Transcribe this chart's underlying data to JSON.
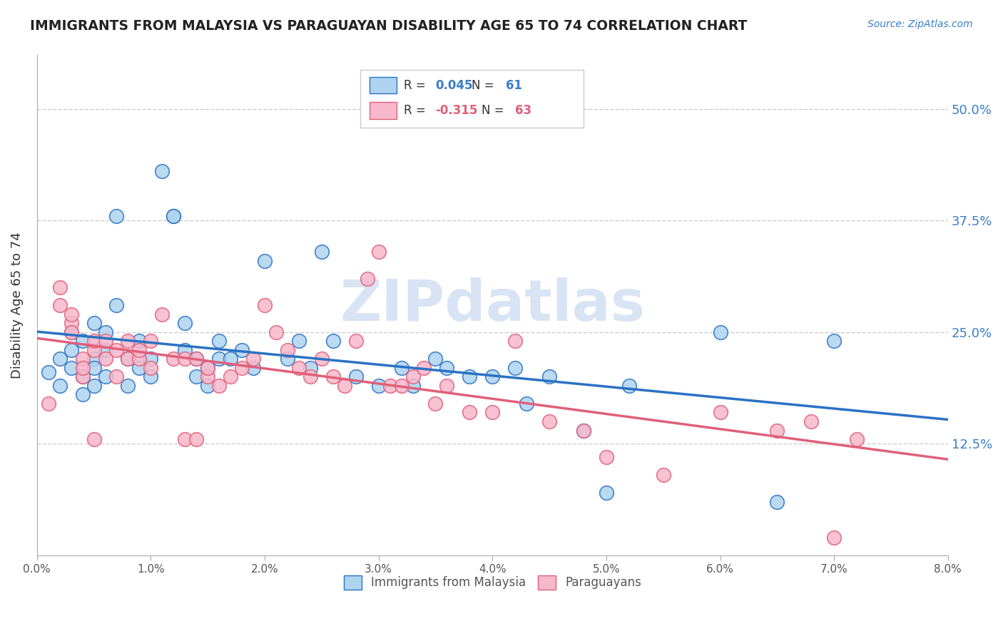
{
  "title": "IMMIGRANTS FROM MALAYSIA VS PARAGUAYAN DISABILITY AGE 65 TO 74 CORRELATION CHART",
  "source": "Source: ZipAtlas.com",
  "ylabel": "Disability Age 65 to 74",
  "ytick_labels": [
    "50.0%",
    "37.5%",
    "25.0%",
    "12.5%"
  ],
  "ytick_values": [
    0.5,
    0.375,
    0.25,
    0.125
  ],
  "xmin": 0.0,
  "xmax": 0.08,
  "ymin": 0.0,
  "ymax": 0.56,
  "legend_label_1": "Immigrants from Malaysia",
  "legend_label_2": "Paraguayans",
  "r1": "0.045",
  "n1": "61",
  "r2": "-0.315",
  "n2": "63",
  "color_blue": "#aed4f0",
  "color_pink": "#f7b8cb",
  "color_blue_line": "#2a72c3",
  "color_pink_line": "#e0607a",
  "color_blue_text": "#3a7dc9",
  "color_pink_text": "#e0607a",
  "watermark_color": "#d8e4f4",
  "background_color": "#ffffff",
  "grid_color": "#cccccc",
  "malaysia_x": [
    0.001,
    0.002,
    0.002,
    0.003,
    0.003,
    0.003,
    0.004,
    0.004,
    0.004,
    0.005,
    0.005,
    0.005,
    0.005,
    0.006,
    0.006,
    0.006,
    0.007,
    0.007,
    0.008,
    0.008,
    0.009,
    0.009,
    0.01,
    0.01,
    0.011,
    0.012,
    0.012,
    0.013,
    0.013,
    0.014,
    0.014,
    0.015,
    0.015,
    0.016,
    0.016,
    0.017,
    0.018,
    0.019,
    0.02,
    0.022,
    0.023,
    0.024,
    0.025,
    0.026,
    0.028,
    0.03,
    0.032,
    0.033,
    0.035,
    0.036,
    0.038,
    0.04,
    0.042,
    0.043,
    0.045,
    0.048,
    0.05,
    0.052,
    0.06,
    0.065,
    0.07
  ],
  "malaysia_y": [
    0.205,
    0.22,
    0.19,
    0.25,
    0.21,
    0.23,
    0.18,
    0.24,
    0.2,
    0.22,
    0.26,
    0.19,
    0.21,
    0.23,
    0.2,
    0.25,
    0.28,
    0.38,
    0.22,
    0.19,
    0.24,
    0.21,
    0.2,
    0.22,
    0.43,
    0.38,
    0.38,
    0.26,
    0.23,
    0.22,
    0.2,
    0.19,
    0.21,
    0.24,
    0.22,
    0.22,
    0.23,
    0.21,
    0.33,
    0.22,
    0.24,
    0.21,
    0.34,
    0.24,
    0.2,
    0.19,
    0.21,
    0.19,
    0.22,
    0.21,
    0.2,
    0.2,
    0.21,
    0.17,
    0.2,
    0.14,
    0.07,
    0.19,
    0.25,
    0.06,
    0.24
  ],
  "paraguay_x": [
    0.001,
    0.002,
    0.002,
    0.003,
    0.003,
    0.003,
    0.004,
    0.004,
    0.004,
    0.005,
    0.005,
    0.005,
    0.006,
    0.006,
    0.007,
    0.007,
    0.008,
    0.008,
    0.009,
    0.009,
    0.01,
    0.01,
    0.011,
    0.012,
    0.013,
    0.013,
    0.014,
    0.014,
    0.015,
    0.015,
    0.016,
    0.017,
    0.018,
    0.019,
    0.02,
    0.021,
    0.022,
    0.023,
    0.024,
    0.025,
    0.026,
    0.027,
    0.028,
    0.029,
    0.03,
    0.031,
    0.032,
    0.033,
    0.034,
    0.035,
    0.036,
    0.038,
    0.04,
    0.042,
    0.045,
    0.048,
    0.05,
    0.055,
    0.06,
    0.065,
    0.068,
    0.07,
    0.072
  ],
  "paraguay_y": [
    0.17,
    0.3,
    0.28,
    0.26,
    0.27,
    0.25,
    0.22,
    0.2,
    0.21,
    0.23,
    0.24,
    0.13,
    0.22,
    0.24,
    0.23,
    0.2,
    0.22,
    0.24,
    0.22,
    0.23,
    0.21,
    0.24,
    0.27,
    0.22,
    0.22,
    0.13,
    0.13,
    0.22,
    0.2,
    0.21,
    0.19,
    0.2,
    0.21,
    0.22,
    0.28,
    0.25,
    0.23,
    0.21,
    0.2,
    0.22,
    0.2,
    0.19,
    0.24,
    0.31,
    0.34,
    0.19,
    0.19,
    0.2,
    0.21,
    0.17,
    0.19,
    0.16,
    0.16,
    0.24,
    0.15,
    0.14,
    0.11,
    0.09,
    0.16,
    0.14,
    0.15,
    0.02,
    0.13
  ]
}
